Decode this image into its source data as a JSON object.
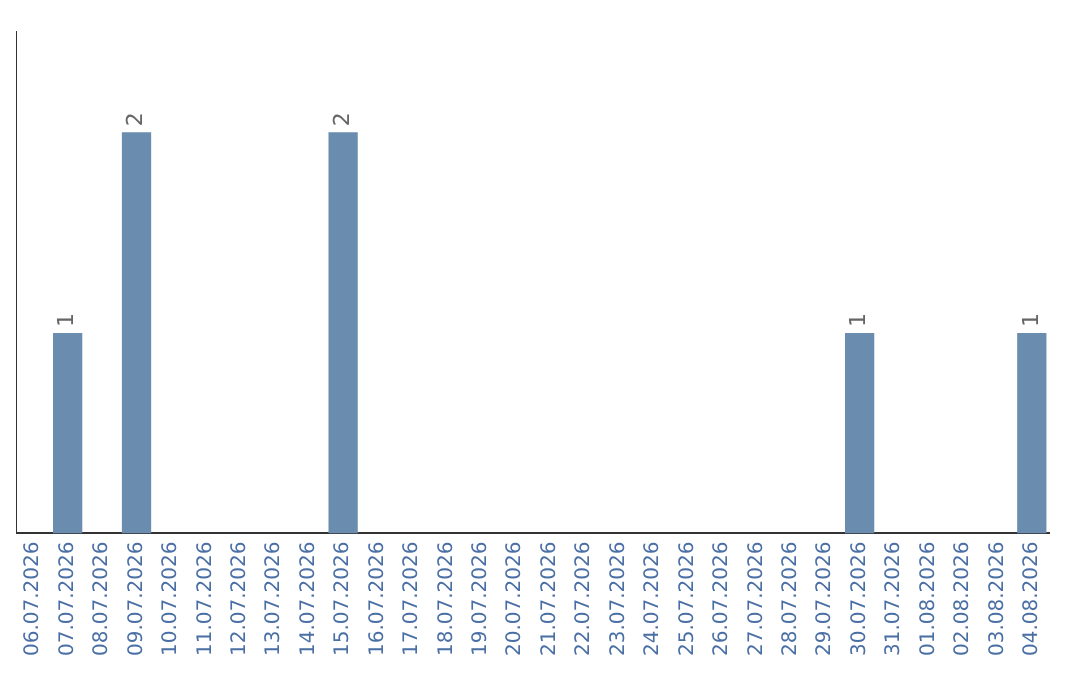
{
  "chart_data": {
    "type": "bar",
    "categories": [
      "06.07.2026",
      "07.07.2026",
      "08.07.2026",
      "09.07.2026",
      "10.07.2026",
      "11.07.2026",
      "12.07.2026",
      "13.07.2026",
      "14.07.2026",
      "15.07.2026",
      "16.07.2026",
      "17.07.2026",
      "18.07.2026",
      "19.07.2026",
      "20.07.2026",
      "21.07.2026",
      "22.07.2026",
      "23.07.2026",
      "24.07.2026",
      "25.07.2026",
      "26.07.2026",
      "27.07.2026",
      "28.07.2026",
      "29.07.2026",
      "30.07.2026",
      "31.07.2026",
      "01.08.2026",
      "02.08.2026",
      "03.08.2026",
      "04.08.2026"
    ],
    "values": [
      0,
      1,
      0,
      2,
      0,
      0,
      0,
      0,
      0,
      2,
      0,
      0,
      0,
      0,
      0,
      0,
      0,
      0,
      0,
      0,
      0,
      0,
      0,
      0,
      1,
      0,
      0,
      0,
      0,
      1
    ],
    "value_labels": [
      null,
      "1",
      null,
      "2",
      null,
      null,
      null,
      null,
      null,
      "2",
      null,
      null,
      null,
      null,
      null,
      null,
      null,
      null,
      null,
      null,
      null,
      null,
      null,
      null,
      "1",
      null,
      null,
      null,
      null,
      "1"
    ],
    "color": "#6a8caf",
    "grid": false,
    "legend": false,
    "tick_labels": "x"
  }
}
